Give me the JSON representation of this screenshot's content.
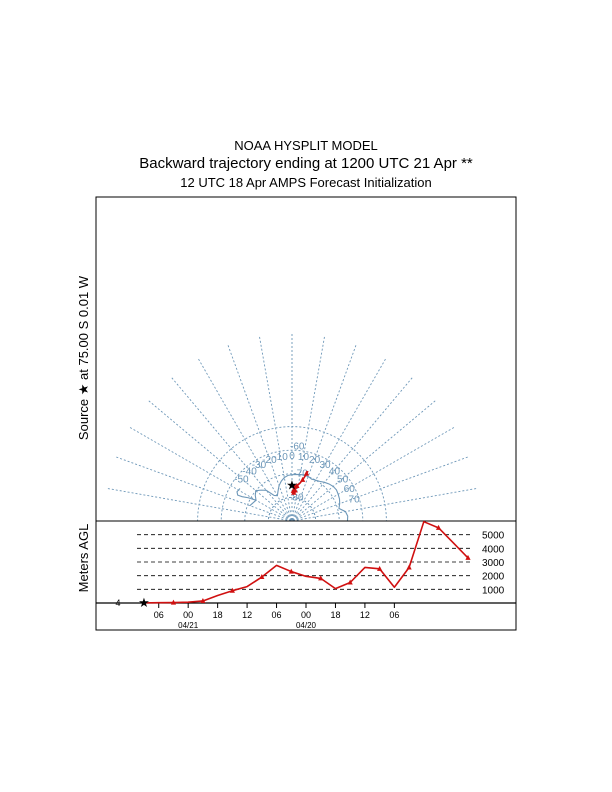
{
  "header": {
    "title": "NOAA HYSPLIT MODEL",
    "subtitle": "Backward trajectory ending at 1200 UTC 21 Apr **",
    "initialization": "12 UTC 18 Apr    AMPS  Forecast Initialization"
  },
  "map_panel": {
    "side_label": "Source ★ at  75.00 S   0.01 W",
    "longitude_labels": [
      "-10",
      "-20",
      "-30",
      "-40",
      "-50",
      "0",
      "10",
      "20",
      "30",
      "40",
      "50",
      "60",
      "70"
    ],
    "latitude_labels": [
      "-60",
      "-70",
      "-80"
    ]
  },
  "height_panel": {
    "ylabel": "Meters AGL",
    "levels": [
      "5000",
      "4000",
      "3000",
      "2000",
      "1000"
    ],
    "time_ticks": [
      "06",
      "00",
      "18",
      "12",
      "06",
      "00",
      "18",
      "12",
      "06"
    ],
    "date_labels": [
      "04/21",
      "04/20"
    ]
  },
  "chart_data": {
    "type": "line",
    "title": "NOAA HYSPLIT MODEL",
    "subtitle": "Backward trajectory ending at 1200 UTC 21 Apr **",
    "ylabel": "Meters AGL",
    "ylim": [
      0,
      6000
    ],
    "series": [
      {
        "hours_back": [
          0,
          6,
          12,
          18,
          24,
          30,
          36,
          42,
          48,
          54,
          60,
          66,
          72,
          78,
          84,
          90,
          96,
          102,
          108,
          114,
          120,
          126,
          132
        ],
        "height_m": [
          10,
          20,
          30,
          60,
          150,
          550,
          900,
          1200,
          1900,
          2750,
          2300,
          1950,
          1800,
          1050,
          1500,
          2600,
          2500,
          1150,
          2600,
          5950,
          5500,
          4400,
          3300
        ]
      }
    ],
    "trajectory_lonlat": [
      [
        -0.01,
        -75.0
      ],
      [
        3.0,
        -75.2
      ],
      [
        5.0,
        -75.5
      ],
      [
        6.0,
        -76.2
      ],
      [
        6.0,
        -77.0
      ],
      [
        5.0,
        -77.6
      ],
      [
        3.5,
        -78.0
      ],
      [
        2.5,
        -77.9
      ],
      [
        2.5,
        -77.2
      ],
      [
        4.5,
        -76.2
      ],
      [
        8.0,
        -75.0
      ],
      [
        12.0,
        -73.5
      ],
      [
        14.5,
        -72.0
      ],
      [
        16.0,
        -70.5
      ],
      [
        17.0,
        -69.0
      ],
      [
        17.8,
        -67.8
      ]
    ]
  }
}
